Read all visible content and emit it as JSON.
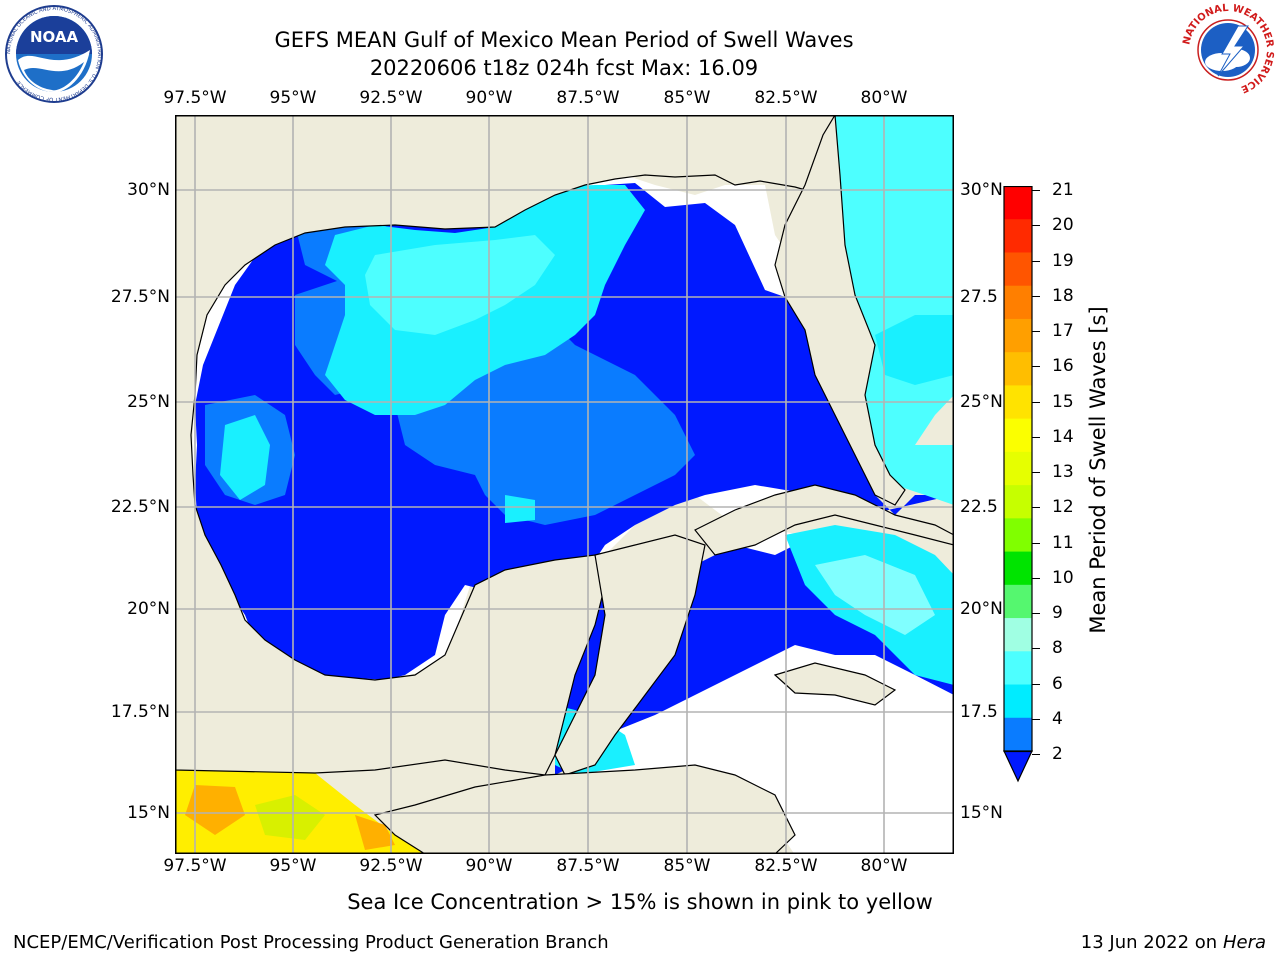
{
  "header": {
    "title_line1": "GEFS MEAN Gulf of Mexico Mean Period of Swell Waves",
    "title_line2": "20220606 t18z 024h fcst   Max: 16.09"
  },
  "logos": {
    "left": "NOAA",
    "left_ring_text": "NATIONAL OCEANIC AND ATMOSPHERIC ADMINISTRATION · U.S. DEPARTMENT OF COMMERCE",
    "right_ring_text": "NATIONAL WEATHER SERVICE"
  },
  "map": {
    "lon_ticks": [
      "97.5°W",
      "95°W",
      "92.5°W",
      "90°W",
      "87.5°W",
      "85°W",
      "82.5°W",
      "80°W"
    ],
    "lat_ticks_left": [
      "30°N",
      "27.5°N",
      "25°N",
      "22.5°N",
      "20°N",
      "17.5°N",
      "15°N"
    ],
    "lat_ticks_right": [
      "30°N",
      "27.5",
      "25°N",
      "22.5",
      "20°N",
      "17.5",
      "15°N"
    ],
    "colors": {
      "land": "#eeecdb",
      "ocean_lt4": "#0019ff",
      "ocean_2_4": "#0a7cff",
      "ocean_4_6": "#19f0ff",
      "ocean_6_8": "#4dffff",
      "ocean_8_9": "#80ffff",
      "ice_yellow": "#ffee00",
      "ice_orange": "#ffb000",
      "ice_green": "#d8f000"
    }
  },
  "colorbar": {
    "label": "Mean Period of Swell Waves [s]",
    "ticks": [
      "21",
      "20",
      "19",
      "18",
      "17",
      "16",
      "15",
      "14",
      "13",
      "12",
      "11",
      "10",
      "9",
      "8",
      "6",
      "4",
      "2"
    ],
    "colors": [
      "#ff0000",
      "#ff2a00",
      "#ff5500",
      "#ff7f00",
      "#ff9f00",
      "#ffbe00",
      "#ffe300",
      "#fbff00",
      "#e6ff00",
      "#c6ff00",
      "#80ff00",
      "#00e400",
      "#55f76f",
      "#a0ffe3",
      "#4dffff",
      "#00ecff",
      "#0a7cff",
      "#0019ff"
    ]
  },
  "caption": "Sea Ice Concentration > 15% is shown in pink to yellow",
  "footer": {
    "left": "NCEP/EMC/Verification Post Processing Product Generation Branch",
    "right_prefix": "13 Jun 2022 on",
    "right_italic": "Hera"
  }
}
